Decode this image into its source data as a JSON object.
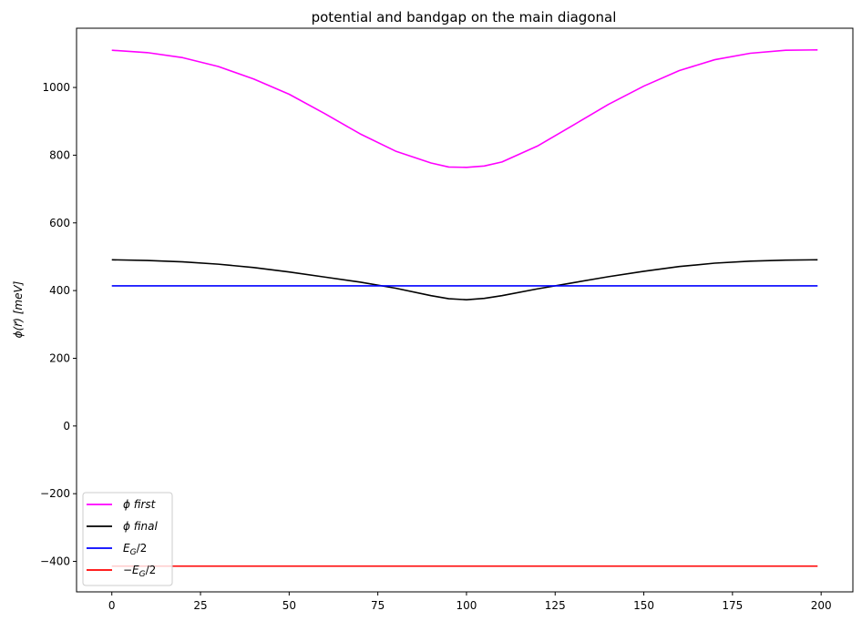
{
  "chart_data": {
    "type": "line",
    "title": "potential and bandgap on the main diagonal",
    "xlabel": "",
    "ylabel": "ϕ(r⃗)  [meV]",
    "xlim": [
      -9.95,
      208.95
    ],
    "ylim": [
      -490,
      1175
    ],
    "xticks": [
      0,
      25,
      50,
      75,
      100,
      125,
      150,
      175,
      200
    ],
    "xtick_labels": [
      "0",
      "25",
      "50",
      "75",
      "100",
      "125",
      "150",
      "175",
      "200"
    ],
    "yticks": [
      -400,
      -200,
      0,
      200,
      400,
      600,
      800,
      1000
    ],
    "ytick_labels": [
      "−400",
      "−200",
      "0",
      "200",
      "400",
      "600",
      "800",
      "1000"
    ],
    "grid": false,
    "legend_position": "lower-left",
    "series": [
      {
        "name": "ϕ first",
        "color": "#ff00ff",
        "x": [
          0,
          10,
          20,
          30,
          40,
          50,
          60,
          70,
          80,
          90,
          95,
          100,
          105,
          110,
          120,
          130,
          140,
          150,
          160,
          170,
          180,
          190,
          199
        ],
        "y": [
          1110,
          1103,
          1088,
          1062,
          1025,
          980,
          923,
          863,
          812,
          777,
          765,
          764,
          768,
          780,
          827,
          888,
          950,
          1004,
          1050,
          1082,
          1101,
          1110,
          1111
        ]
      },
      {
        "name": "ϕ final",
        "color": "#000000",
        "x": [
          0,
          10,
          20,
          30,
          40,
          50,
          60,
          70,
          80,
          90,
          95,
          100,
          105,
          110,
          120,
          130,
          140,
          150,
          160,
          170,
          180,
          190,
          199
        ],
        "y": [
          491,
          489,
          485,
          478,
          468,
          455,
          440,
          425,
          407,
          385,
          376,
          373,
          377,
          385,
          405,
          423,
          441,
          457,
          471,
          481,
          487,
          490,
          491
        ]
      },
      {
        "name": "E_G/2",
        "color": "#0000ff",
        "x": [
          0,
          199
        ],
        "y": [
          414,
          414
        ]
      },
      {
        "name": "−E_G/2",
        "color": "#ff0000",
        "x": [
          0,
          199
        ],
        "y": [
          -414,
          -414
        ]
      }
    ]
  }
}
